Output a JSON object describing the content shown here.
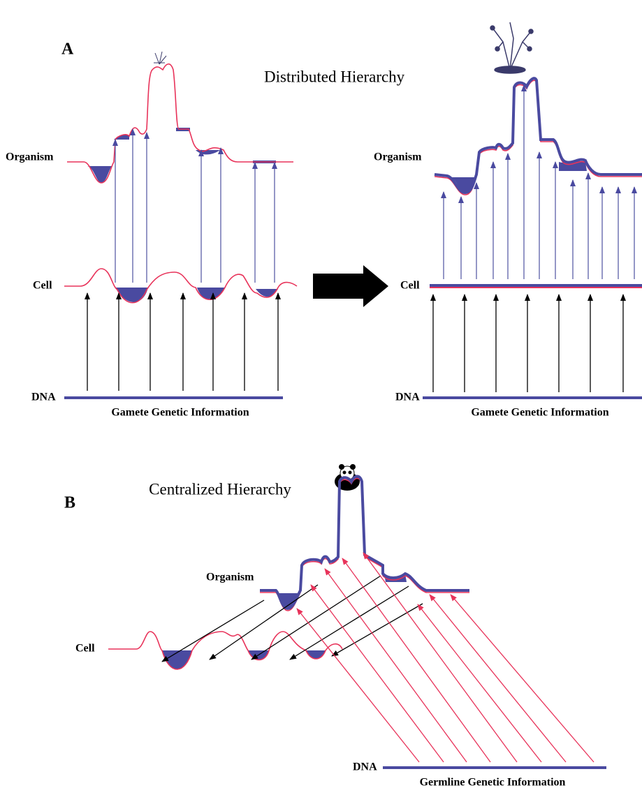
{
  "panel_a": {
    "label": "A",
    "title": "Distributed Hierarchy",
    "left": {
      "organism": "Organism",
      "cell": "Cell",
      "dna": "DNA",
      "caption": "Gamete Genetic Information"
    },
    "right": {
      "organism": "Organism",
      "cell": "Cell",
      "dna": "DNA",
      "caption": "Gamete Genetic Information"
    }
  },
  "panel_b": {
    "label": "B",
    "title": "Centralized Hierarchy",
    "organism": "Organism",
    "cell": "Cell",
    "dna": "DNA",
    "caption": "Germline Genetic Information"
  }
}
